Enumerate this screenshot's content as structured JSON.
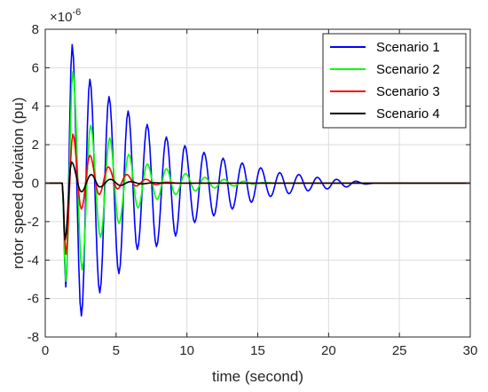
{
  "chart_data": {
    "type": "line",
    "title": "",
    "xlabel": "time (second)",
    "ylabel": "rotor speed deviation (pu)",
    "y_multiplier_label": "×10",
    "y_multiplier_exponent": "-6",
    "xlim": [
      0,
      30
    ],
    "ylim": [
      -8,
      8
    ],
    "x_ticks": [
      "0",
      "5",
      "10",
      "15",
      "20",
      "25",
      "30"
    ],
    "y_ticks": [
      "-8",
      "-6",
      "-4",
      "-2",
      "0",
      "2",
      "4",
      "6",
      "8"
    ],
    "x_tick_values": [
      0,
      5,
      10,
      15,
      20,
      25,
      30
    ],
    "y_tick_values": [
      -8,
      -6,
      -4,
      -2,
      0,
      2,
      4,
      6,
      8
    ],
    "grid": true,
    "legend_position": "top-right",
    "series": [
      {
        "name": "Scenario 1",
        "color": "#0000ff",
        "x": [
          0,
          1.2,
          1.45,
          1.9,
          2.55,
          3.15,
          3.85,
          4.5,
          5.2,
          5.85,
          6.5,
          7.2,
          7.85,
          8.55,
          9.2,
          9.85,
          10.55,
          11.2,
          11.9,
          12.55,
          13.2,
          13.9,
          14.55,
          15.2,
          15.9,
          16.55,
          17.2,
          17.9,
          18.55,
          19.2,
          19.9,
          20.55,
          21.25,
          21.9,
          22.6,
          23.3,
          30
        ],
        "y": [
          0,
          0,
          -5.4,
          7.2,
          -6.9,
          5.4,
          -5.7,
          4.5,
          -4.7,
          3.75,
          -3.45,
          3.05,
          -3.3,
          2.4,
          -2.75,
          1.95,
          -2.05,
          1.6,
          -1.7,
          1.3,
          -1.35,
          1.05,
          -1.0,
          0.8,
          -0.7,
          0.55,
          -0.55,
          0.45,
          -0.4,
          0.3,
          -0.3,
          0.2,
          -0.2,
          0.1,
          -0.05,
          0,
          0
        ]
      },
      {
        "name": "Scenario 2",
        "color": "#00ff00",
        "x": [
          0,
          1.2,
          1.45,
          1.95,
          2.6,
          3.2,
          3.9,
          4.55,
          5.2,
          5.9,
          6.55,
          7.2,
          7.9,
          8.55,
          9.2,
          9.9,
          10.6,
          11.25,
          11.95,
          12.6,
          13.3,
          14,
          14.7,
          15.4,
          16.5,
          30
        ],
        "y": [
          0,
          0,
          -5.1,
          5.8,
          -4.5,
          3.0,
          -2.8,
          2.35,
          -2.1,
          1.5,
          -1.3,
          1.0,
          -0.85,
          0.75,
          -0.6,
          0.5,
          -0.4,
          0.3,
          -0.25,
          0.2,
          -0.15,
          0.1,
          -0.05,
          0.03,
          0,
          0
        ]
      },
      {
        "name": "Scenario 3",
        "color": "#ff0000",
        "x": [
          0,
          1.2,
          1.45,
          1.95,
          2.55,
          3.15,
          3.8,
          4.45,
          5.1,
          5.75,
          6.4,
          7.1,
          7.8,
          8.5,
          9.5,
          30
        ],
        "y": [
          0,
          0,
          -3.7,
          2.55,
          -1.35,
          1.45,
          -0.6,
          0.85,
          -0.3,
          0.45,
          -0.15,
          0.2,
          -0.08,
          0.05,
          0,
          0
        ]
      },
      {
        "name": "Scenario 4",
        "color": "#000000",
        "x": [
          0,
          1.2,
          1.4,
          1.85,
          2.55,
          3.25,
          3.85,
          4.6,
          5.3,
          6.0,
          6.8,
          7.6,
          8.5,
          30
        ],
        "y": [
          0,
          0,
          -2.95,
          1.1,
          -0.45,
          0.45,
          -0.2,
          0.2,
          -0.12,
          0.08,
          -0.04,
          0.02,
          0,
          0
        ]
      }
    ]
  }
}
